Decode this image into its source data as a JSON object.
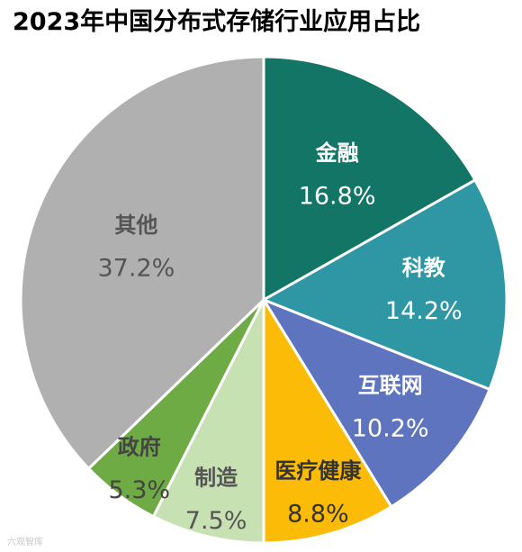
{
  "chart_data": {
    "type": "pie",
    "title": "2023年中国分布式存储行业应用占比",
    "slices": [
      {
        "name": "金融",
        "value": 16.8,
        "label": "16.8%",
        "color": "#137566",
        "text_color": "#ffffff"
      },
      {
        "name": "科教",
        "value": 14.2,
        "label": "14.2%",
        "color": "#2f96a3",
        "text_color": "#ffffff"
      },
      {
        "name": "互联网",
        "value": 10.2,
        "label": "10.2%",
        "color": "#5f74bf",
        "text_color": "#ffffff"
      },
      {
        "name": "医疗健康",
        "value": 8.8,
        "label": "8.8%",
        "color": "#fbbb06",
        "text_color": "#333333"
      },
      {
        "name": "制造",
        "value": 7.5,
        "label": "7.5%",
        "color": "#c7e1b2",
        "text_color": "#555555"
      },
      {
        "name": "政府",
        "value": 5.3,
        "label": "5.3%",
        "color": "#6fab45",
        "text_color": "#444444"
      },
      {
        "name": "其他",
        "value": 37.2,
        "label": "37.2%",
        "color": "#b0b0b0",
        "text_color": "#555555"
      }
    ],
    "start_angle": "12 o'clock",
    "direction": "clockwise",
    "legend": "none"
  },
  "watermark": "六观智库"
}
